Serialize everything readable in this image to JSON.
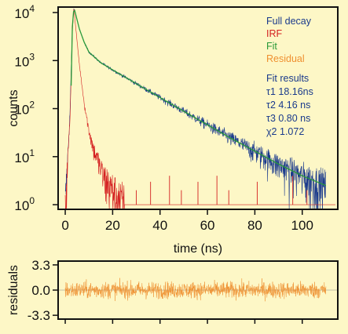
{
  "chart_data": [
    {
      "type": "line",
      "xlabel": "time (ns)",
      "ylabel": "counts",
      "yscale": "log",
      "xlim": [
        -3,
        115
      ],
      "ylim": [
        0.8,
        13000
      ],
      "xticks": [
        0,
        20,
        40,
        60,
        80,
        100
      ],
      "xtick_labels": [
        "0",
        "20",
        "40",
        "60",
        "80",
        "100"
      ],
      "yticks": [
        1,
        10,
        100,
        1000,
        10000
      ],
      "ytick_labels": [
        {
          "base": "10",
          "exp": "0"
        },
        {
          "base": "10",
          "exp": "1"
        },
        {
          "base": "10",
          "exp": "2"
        },
        {
          "base": "10",
          "exp": "3"
        },
        {
          "base": "10",
          "exp": "4"
        }
      ],
      "legend_position": "top-right",
      "series": [
        {
          "name": "Full decay",
          "color": "#1a3a8c",
          "x": [
            0,
            2,
            3,
            3.6,
            4,
            5,
            6,
            8,
            10,
            15,
            20,
            30,
            40,
            50,
            60,
            70,
            80,
            90,
            100,
            110
          ],
          "y": [
            1,
            80,
            5000,
            12000,
            11000,
            7000,
            4500,
            2400,
            1500,
            900,
            640,
            330,
            170,
            88,
            46,
            24,
            13,
            7,
            4,
            2.5
          ]
        },
        {
          "name": "IRF",
          "color": "#d42020",
          "x": [
            0,
            2,
            3,
            3.6,
            4,
            5,
            6,
            8,
            10,
            12,
            14,
            16,
            18,
            20,
            25
          ],
          "y": [
            1,
            60,
            4000,
            12000,
            8000,
            2500,
            800,
            130,
            35,
            14,
            8,
            4,
            3,
            2,
            1
          ]
        },
        {
          "name": "Fit",
          "color": "#2a9a3a",
          "x": [
            2.5,
            3,
            3.6,
            4,
            5,
            6,
            8,
            10,
            15,
            20,
            30,
            40,
            50,
            60,
            70,
            80,
            90,
            100,
            110
          ],
          "y": [
            300,
            5000,
            12000,
            11000,
            7000,
            4500,
            2400,
            1500,
            900,
            640,
            330,
            170,
            88,
            46,
            24,
            13,
            7,
            4,
            2.5
          ]
        },
        {
          "name": "Residual",
          "color": "#ef9030",
          "x": [],
          "y": []
        }
      ],
      "legend_text": {
        "full_decay": "Full decay",
        "irf": "IRF",
        "fit": "Fit",
        "residual": "Residual",
        "results_title": "Fit results",
        "tau1": "τ1 18.16ns",
        "tau2": "τ2 4.16 ns",
        "tau3": "τ3 0.80 ns",
        "chi2": "χ2 1.072"
      }
    },
    {
      "type": "line",
      "ylabel": "residuals",
      "xlim": [
        -3,
        115
      ],
      "ylim": [
        -3.8,
        3.8
      ],
      "yticks": [
        3.3,
        0.0,
        -3.3
      ],
      "ytick_labels": [
        "3.3",
        "0.0",
        "-3.3"
      ],
      "xticks": [
        0,
        20,
        40,
        60,
        80,
        100
      ],
      "series": [
        {
          "name": "Residual",
          "color": "#ef9030",
          "x": [
            0,
            110
          ],
          "y": [
            0,
            0
          ]
        }
      ]
    }
  ],
  "colors": {
    "background": "#fdf7c6",
    "axis": "#111111",
    "results_text": "#1a3a8c"
  }
}
